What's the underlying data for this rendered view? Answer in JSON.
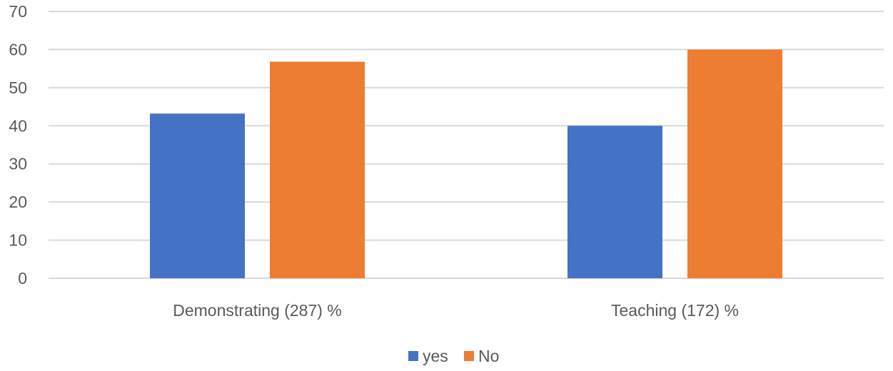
{
  "chart_data": {
    "type": "bar",
    "title": "",
    "xlabel": "",
    "ylabel": "",
    "categories": [
      "Demonstrating (287) %",
      "Teaching (172) %"
    ],
    "series": [
      {
        "name": "yes",
        "values": [
          43.2,
          40.0
        ],
        "color": "#4472C4"
      },
      {
        "name": "No",
        "values": [
          56.8,
          60.0
        ],
        "color": "#ED7D31"
      }
    ],
    "ylim": [
      0,
      70
    ],
    "yticks": [
      0,
      10,
      20,
      30,
      40,
      50,
      60,
      70
    ],
    "grid": true,
    "legend_position": "bottom",
    "gridline_color": "#D9D9D9",
    "text_color": "#595959"
  }
}
